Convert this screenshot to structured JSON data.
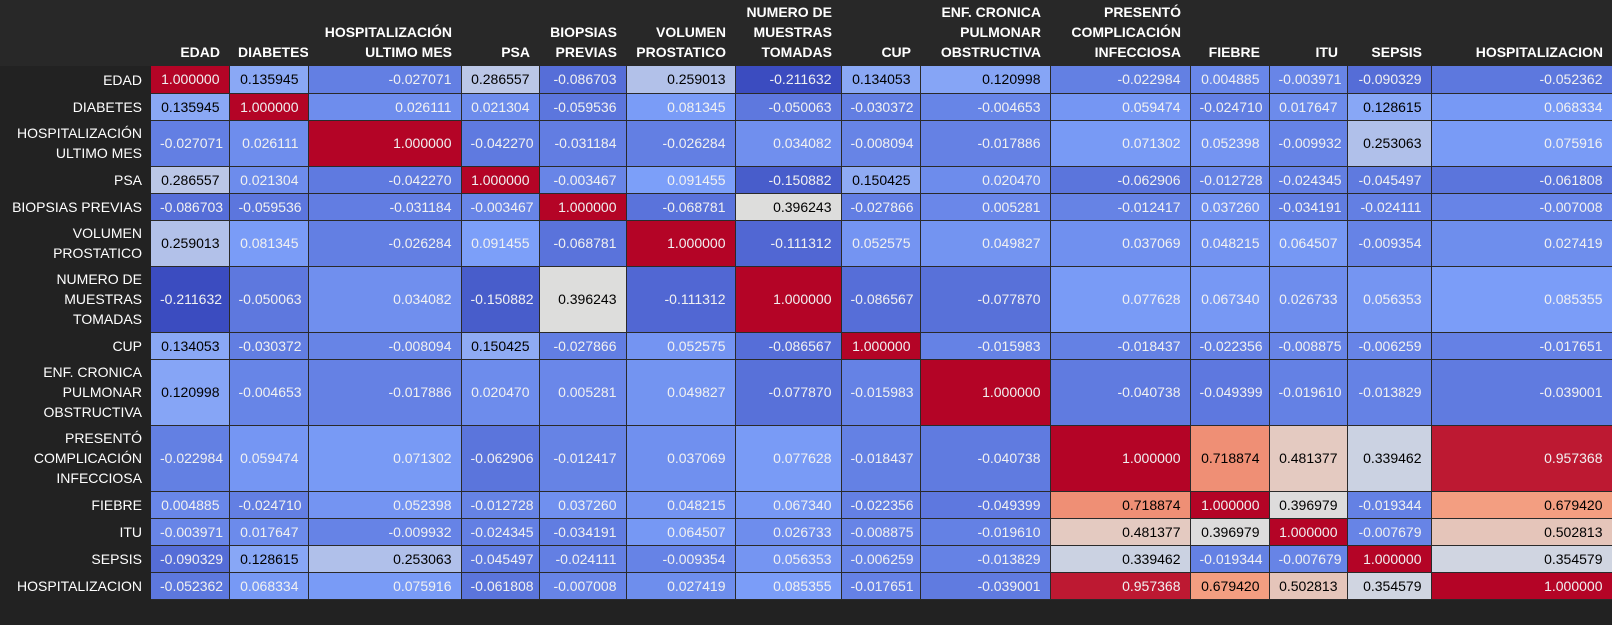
{
  "chart_data": {
    "type": "heatmap",
    "colormap": "coolwarm",
    "vmin": -0.211632,
    "vmax": 1.0,
    "columns": [
      [
        "EDAD"
      ],
      [
        "DIABETES"
      ],
      [
        "HOSPITALIZACIÓN",
        "ULTIMO MES"
      ],
      [
        "PSA"
      ],
      [
        "BIOPSIAS",
        "PREVIAS"
      ],
      [
        "VOLUMEN",
        "PROSTATICO"
      ],
      [
        "NUMERO DE",
        "MUESTRAS",
        "TOMADAS"
      ],
      [
        "CUP"
      ],
      [
        "ENF. CRONICA",
        "PULMONAR",
        "OBSTRUCTIVA"
      ],
      [
        "PRESENTÓ",
        "COMPLICACIÓN",
        "INFECCIOSA"
      ],
      [
        "FIEBRE"
      ],
      [
        "ITU"
      ],
      [
        "SEPSIS"
      ],
      [
        "HOSPITALIZACION"
      ]
    ],
    "rows": [
      [
        "EDAD"
      ],
      [
        "DIABETES"
      ],
      [
        "HOSPITALIZACIÓN",
        "ULTIMO MES"
      ],
      [
        "PSA"
      ],
      [
        "BIOPSIAS PREVIAS"
      ],
      [
        "VOLUMEN",
        "PROSTATICO"
      ],
      [
        "NUMERO DE",
        "MUESTRAS",
        "TOMADAS"
      ],
      [
        "CUP"
      ],
      [
        "ENF. CRONICA",
        "PULMONAR",
        "OBSTRUCTIVA"
      ],
      [
        "PRESENTÓ",
        "COMPLICACIÓN",
        "INFECCIOSA"
      ],
      [
        "FIEBRE"
      ],
      [
        "ITU"
      ],
      [
        "SEPSIS"
      ],
      [
        "HOSPITALIZACION"
      ]
    ],
    "values": [
      [
        "1.000000",
        "0.135945",
        "-0.027071",
        "0.286557",
        "-0.086703",
        "0.259013",
        "-0.211632",
        "0.134053",
        "0.120998",
        "-0.022984",
        "0.004885",
        "-0.003971",
        "-0.090329",
        "-0.052362"
      ],
      [
        "0.135945",
        "1.000000",
        "0.026111",
        "0.021304",
        "-0.059536",
        "0.081345",
        "-0.050063",
        "-0.030372",
        "-0.004653",
        "0.059474",
        "-0.024710",
        "0.017647",
        "0.128615",
        "0.068334"
      ],
      [
        "-0.027071",
        "0.026111",
        "1.000000",
        "-0.042270",
        "-0.031184",
        "-0.026284",
        "0.034082",
        "-0.008094",
        "-0.017886",
        "0.071302",
        "0.052398",
        "-0.009932",
        "0.253063",
        "0.075916"
      ],
      [
        "0.286557",
        "0.021304",
        "-0.042270",
        "1.000000",
        "-0.003467",
        "0.091455",
        "-0.150882",
        "0.150425",
        "0.020470",
        "-0.062906",
        "-0.012728",
        "-0.024345",
        "-0.045497",
        "-0.061808"
      ],
      [
        "-0.086703",
        "-0.059536",
        "-0.031184",
        "-0.003467",
        "1.000000",
        "-0.068781",
        "0.396243",
        "-0.027866",
        "0.005281",
        "-0.012417",
        "0.037260",
        "-0.034191",
        "-0.024111",
        "-0.007008"
      ],
      [
        "0.259013",
        "0.081345",
        "-0.026284",
        "0.091455",
        "-0.068781",
        "1.000000",
        "-0.111312",
        "0.052575",
        "0.049827",
        "0.037069",
        "0.048215",
        "0.064507",
        "-0.009354",
        "0.027419"
      ],
      [
        "-0.211632",
        "-0.050063",
        "0.034082",
        "-0.150882",
        "0.396243",
        "-0.111312",
        "1.000000",
        "-0.086567",
        "-0.077870",
        "0.077628",
        "0.067340",
        "0.026733",
        "0.056353",
        "0.085355"
      ],
      [
        "0.134053",
        "-0.030372",
        "-0.008094",
        "0.150425",
        "-0.027866",
        "0.052575",
        "-0.086567",
        "1.000000",
        "-0.015983",
        "-0.018437",
        "-0.022356",
        "-0.008875",
        "-0.006259",
        "-0.017651"
      ],
      [
        "0.120998",
        "-0.004653",
        "-0.017886",
        "0.020470",
        "0.005281",
        "0.049827",
        "-0.077870",
        "-0.015983",
        "1.000000",
        "-0.040738",
        "-0.049399",
        "-0.019610",
        "-0.013829",
        "-0.039001"
      ],
      [
        "-0.022984",
        "0.059474",
        "0.071302",
        "-0.062906",
        "-0.012417",
        "0.037069",
        "0.077628",
        "-0.018437",
        "-0.040738",
        "1.000000",
        "0.718874",
        "0.481377",
        "0.339462",
        "0.957368"
      ],
      [
        "0.004885",
        "-0.024710",
        "0.052398",
        "-0.012728",
        "0.037260",
        "0.048215",
        "0.067340",
        "-0.022356",
        "-0.049399",
        "0.718874",
        "1.000000",
        "0.396979",
        "-0.019344",
        "0.679420"
      ],
      [
        "-0.003971",
        "0.017647",
        "-0.009932",
        "-0.024345",
        "-0.034191",
        "0.064507",
        "0.026733",
        "-0.008875",
        "-0.019610",
        "0.481377",
        "0.396979",
        "1.000000",
        "-0.007679",
        "0.502813"
      ],
      [
        "-0.090329",
        "0.128615",
        "0.253063",
        "-0.045497",
        "-0.024111",
        "-0.009354",
        "0.056353",
        "-0.006259",
        "-0.013829",
        "0.339462",
        "-0.019344",
        "-0.007679",
        "1.000000",
        "0.354579"
      ],
      [
        "-0.052362",
        "0.068334",
        "0.075916",
        "-0.061808",
        "-0.007008",
        "0.027419",
        "0.085355",
        "-0.017651",
        "-0.039001",
        "0.957368",
        "0.679420",
        "0.502813",
        "0.354579",
        "1.000000"
      ]
    ]
  }
}
